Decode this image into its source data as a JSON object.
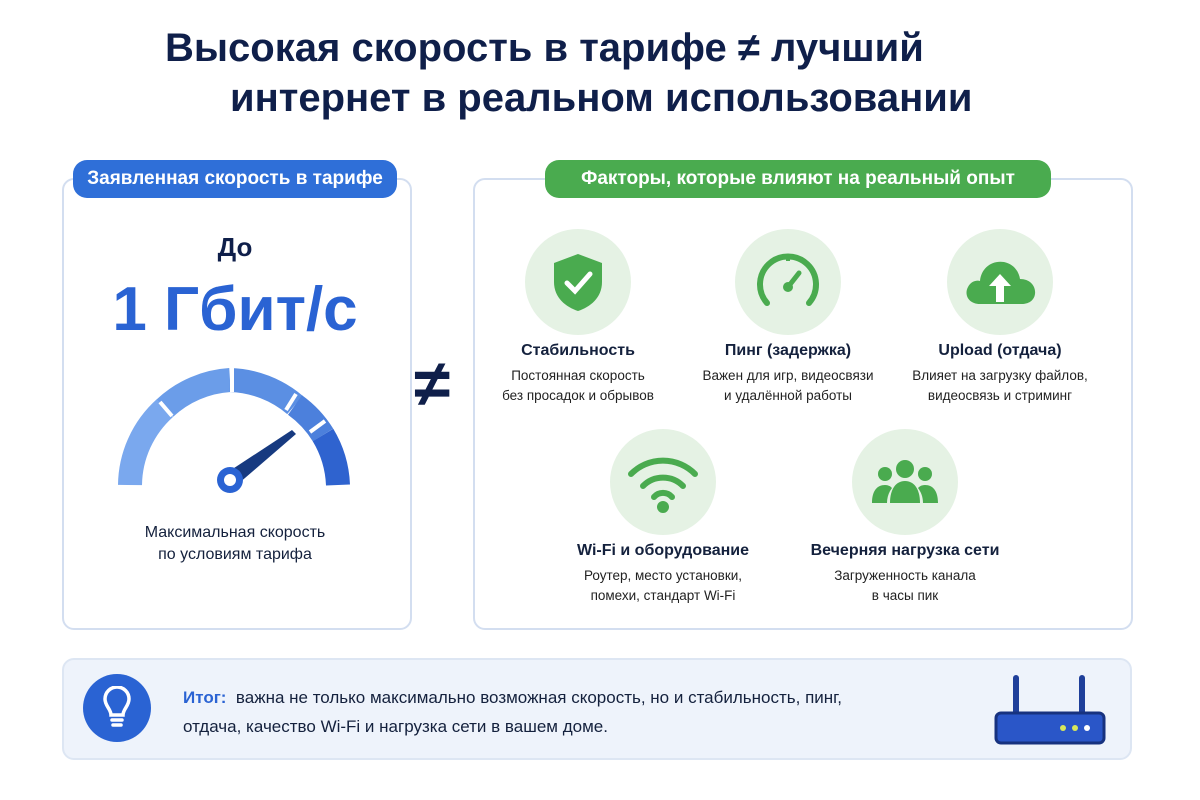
{
  "title": {
    "line1": "Высокая скорость в тарифе ≠ лучший",
    "line2": "интернет в реальном использовании"
  },
  "left": {
    "badge": "Заявленная скорость в тарифе",
    "prefix": "До",
    "speed": "1 Гбит/с",
    "caption1": "Максимальная скорость",
    "caption2": "по условиям тарифа"
  },
  "not_equal": "≠",
  "right": {
    "badge": "Факторы, которые влияют на реальный опыт",
    "factors": [
      {
        "icon": "shield-check-icon",
        "title": "Стабильность",
        "desc1": "Постоянная скорость",
        "desc2": "без просадок и обрывов"
      },
      {
        "icon": "gauge-icon",
        "title": "Пинг (задержка)",
        "desc1": "Важен для игр, видеосвязи",
        "desc2": "и удалённой работы"
      },
      {
        "icon": "cloud-upload-icon",
        "title": "Upload (отдача)",
        "desc1": "Влияет на загрузку файлов,",
        "desc2": "видеосвязь и стриминг"
      },
      {
        "icon": "wifi-icon",
        "title": "Wi-Fi и оборудование",
        "desc1": "Роутер, место установки,",
        "desc2": "помехи, стандарт Wi-Fi"
      },
      {
        "icon": "users-icon",
        "title": "Вечерняя нагрузка сети",
        "desc1": "Загруженность канала",
        "desc2": "в часы пик"
      }
    ]
  },
  "summary": {
    "label": "Итог:",
    "line1": "важна не только максимально возможная скорость, но и стабильность, пинг,",
    "line2": "отдача, качество Wi-Fi и нагрузка сети в вашем доме."
  },
  "colors": {
    "blue": "#2a63d3",
    "green": "#4aab4f",
    "navy": "#0f1f4a"
  }
}
